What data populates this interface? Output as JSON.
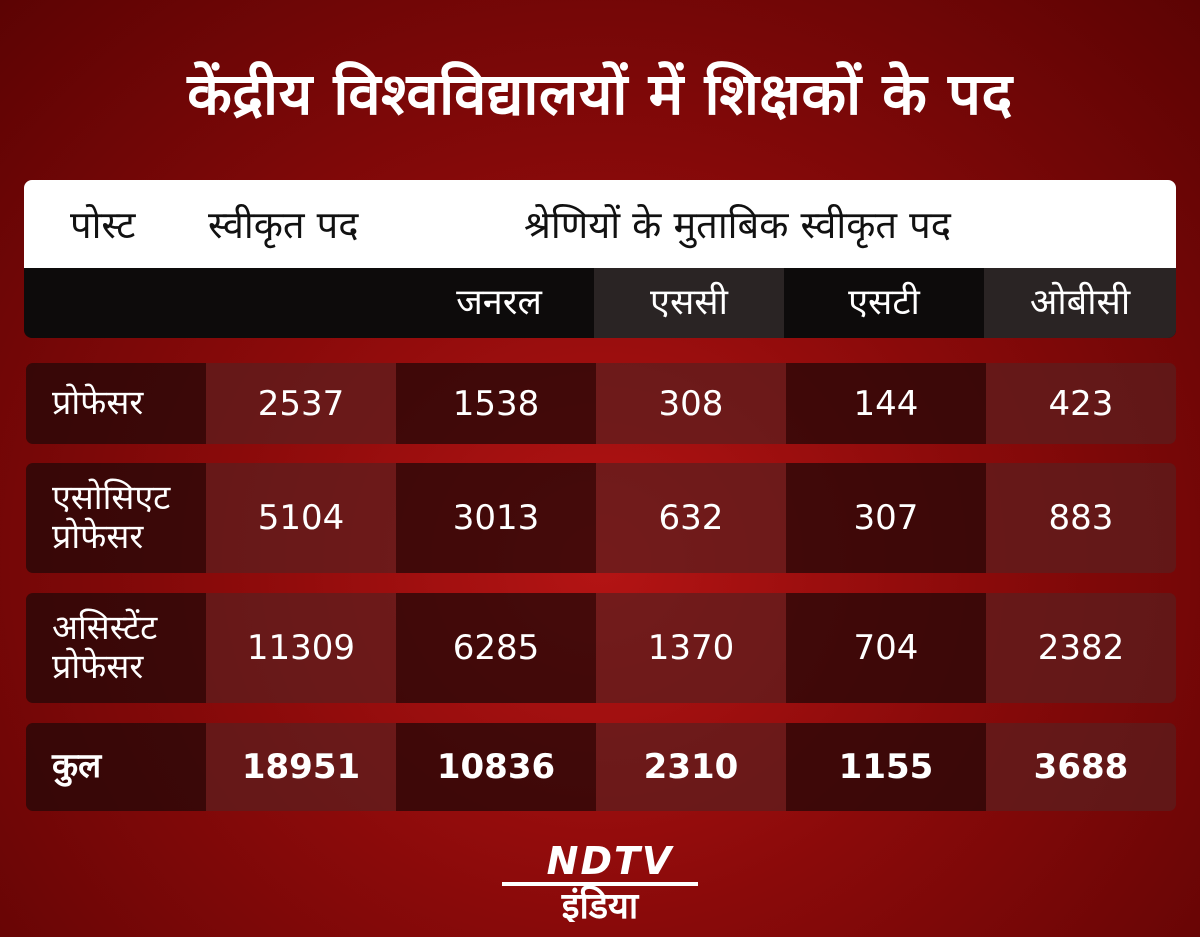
{
  "title": "केंद्रीय विश्वविद्यालयों में शिक्षकों के पद",
  "header": {
    "post": "पोस्ट",
    "sanctioned": "स्वीकृत पद",
    "by_category": "श्रेणियों के मुताबिक स्वीकृत पद"
  },
  "categories": [
    "जनरल",
    "एससी",
    "एसटी",
    "ओबीसी"
  ],
  "rows": [
    {
      "label": "प्रोफेसर",
      "sanctioned": "2537",
      "values": [
        "1538",
        "308",
        "144",
        "423"
      ]
    },
    {
      "label_line1": "एसोसिएट",
      "label_line2": "प्रोफेसर",
      "sanctioned": "5104",
      "values": [
        "3013",
        "632",
        "307",
        "883"
      ]
    },
    {
      "label_line1": "असिस्टेंट",
      "label_line2": "प्रोफेसर",
      "sanctioned": "11309",
      "values": [
        "6285",
        "1370",
        "704",
        "2382"
      ]
    },
    {
      "label": "कुल",
      "sanctioned": "18951",
      "values": [
        "10836",
        "2310",
        "1155",
        "3688"
      ]
    }
  ],
  "logo_text": "NDTV इंडिया",
  "colors": {
    "background": "#8a0a0a",
    "header": "#ffffff",
    "subheader": "#0d0b0b"
  },
  "chart_data": {
    "type": "table",
    "title": "केंद्रीय विश्वविद्यालयों में शिक्षकों के पद",
    "columns": [
      "पोस्ट",
      "स्वीकृत पद",
      "जनरल",
      "एससी",
      "एसटी",
      "ओबीसी"
    ],
    "rows": [
      [
        "प्रोफेसर",
        2537,
        1538,
        308,
        144,
        423
      ],
      [
        "एसोसिएट प्रोफेसर",
        5104,
        3013,
        632,
        307,
        883
      ],
      [
        "असिस्टेंट प्रोफेसर",
        11309,
        6285,
        1370,
        704,
        2382
      ],
      [
        "कुल",
        18951,
        10836,
        2310,
        1155,
        3688
      ]
    ]
  }
}
